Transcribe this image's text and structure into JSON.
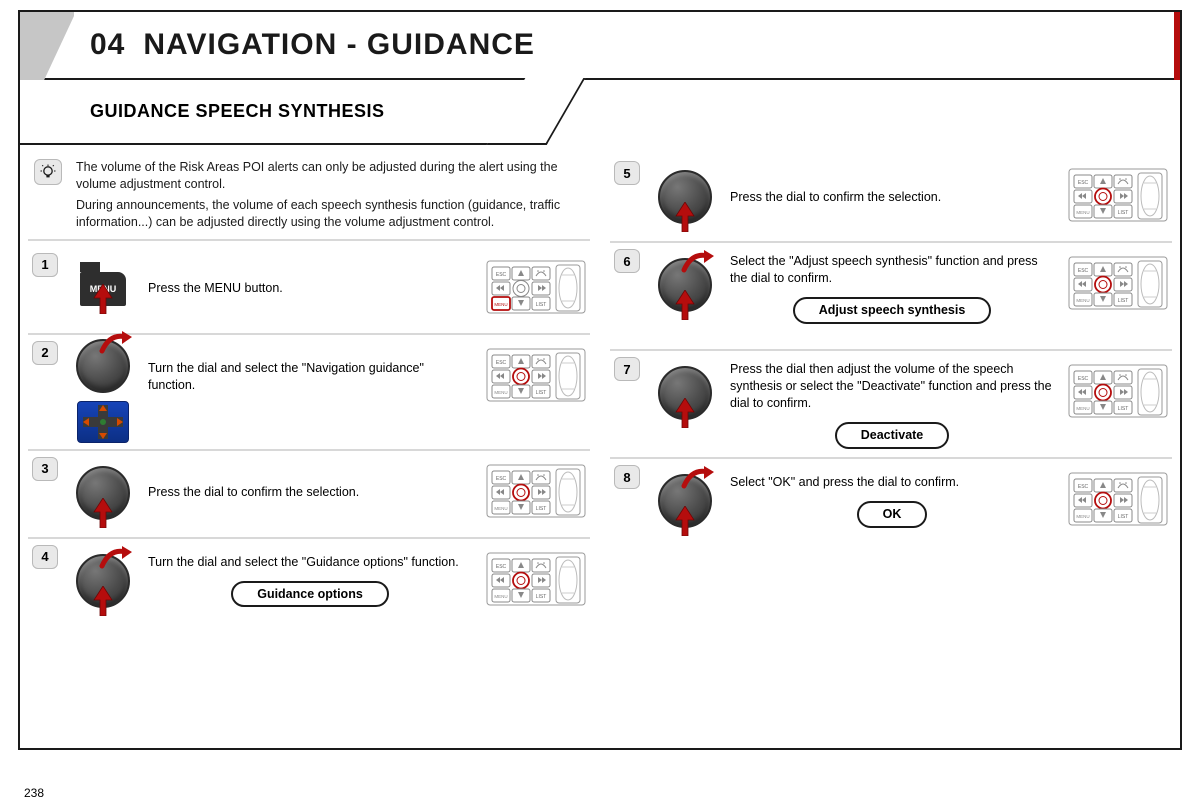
{
  "page_number": "238",
  "header": {
    "section_number": "04",
    "section_title": "NAVIGATION - GUIDANCE"
  },
  "subheader": "GUIDANCE SPEECH SYNTHESIS",
  "colors": {
    "accent_red": "#b50d0d",
    "text": "#1a1a1a",
    "grey_badge": "#e9e9e9",
    "divider": "#d8d8d8",
    "dial_dark": "#4a4a4a",
    "nav_blue": "#1644b8"
  },
  "note": {
    "p1": "The volume of the Risk Areas POI alerts can only be adjusted during the alert using the volume adjustment control.",
    "p2": "During announcements, the volume of each speech synthesis function (guidance, traffic information...) can be adjusted directly using the volume adjustment control."
  },
  "steps_left": [
    {
      "n": "1",
      "kind": "menu_press",
      "text": "Press the MENU button.",
      "pill": null,
      "menu_label": "MENU"
    },
    {
      "n": "2",
      "kind": "dial_turn_nav",
      "text": "Turn the dial and select the \"Navigation guidance\" function.",
      "pill": null
    },
    {
      "n": "3",
      "kind": "dial_press",
      "text": "Press the dial to confirm the selection.",
      "pill": null
    },
    {
      "n": "4",
      "kind": "dial_turn",
      "text": "Turn the dial and select the \"Guidance options\" function.",
      "pill": "Guidance options"
    }
  ],
  "steps_right": [
    {
      "n": "5",
      "kind": "dial_press",
      "text": "Press the dial to confirm the selection.",
      "pill": null
    },
    {
      "n": "6",
      "kind": "dial_turn",
      "text": "Select the \"Adjust speech synthesis\" function and press the dial to confirm.",
      "pill": "Adjust speech synthesis"
    },
    {
      "n": "7",
      "kind": "dial_press",
      "text": "Press the dial then adjust the volume of the speech synthesis or select the \"Deactivate\" function and press the dial to confirm.",
      "pill": "Deactivate"
    },
    {
      "n": "8",
      "kind": "dial_turn",
      "text": "Select \"OK\" and press the dial to confirm.",
      "pill": "OK"
    }
  ],
  "panel_labels": {
    "esc": "ESC",
    "menu": "MENU",
    "list": "LIST"
  }
}
